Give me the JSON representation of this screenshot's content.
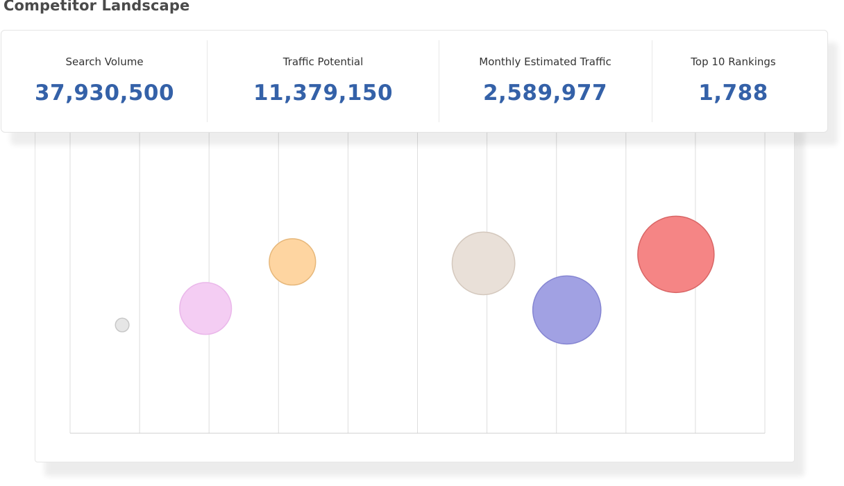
{
  "page": {
    "title": "Competitor Landscape"
  },
  "kpis": [
    {
      "label": "Search Volume",
      "value": "37,930,500"
    },
    {
      "label": "Traffic Potential",
      "value": "11,379,150"
    },
    {
      "label": "Monthly Estimated Traffic",
      "value": "2,589,977"
    },
    {
      "label": "Top 10 Rankings",
      "value": "1,788"
    }
  ],
  "colors": {
    "kpi_value": "#3461a8",
    "gridline": "#dddddd",
    "axis": "#cfcfcf"
  },
  "chart_data": {
    "type": "scatter",
    "title": "",
    "xlabel": "",
    "ylabel": "",
    "xlim": [
      0,
      10
    ],
    "ylim": [
      0,
      10
    ],
    "grid": "vertical",
    "points": [
      {
        "x": 0.75,
        "y": 3.6,
        "size": 0.25,
        "color": "#e6e6e6",
        "stroke": "#c8c8c8"
      },
      {
        "x": 1.95,
        "y": 4.15,
        "size": 0.95,
        "color": "#f4cdf3",
        "stroke": "#eab7ea"
      },
      {
        "x": 3.2,
        "y": 5.7,
        "size": 0.85,
        "color": "#fed5a1",
        "stroke": "#e6b77a"
      },
      {
        "x": 5.95,
        "y": 5.65,
        "size": 1.15,
        "color": "#e9e0d8",
        "stroke": "#d4c8bd"
      },
      {
        "x": 7.15,
        "y": 4.1,
        "size": 1.25,
        "color": "#a1a1e3",
        "stroke": "#8585d2"
      },
      {
        "x": 8.72,
        "y": 5.95,
        "size": 1.4,
        "color": "#f58585",
        "stroke": "#d86565"
      }
    ]
  }
}
